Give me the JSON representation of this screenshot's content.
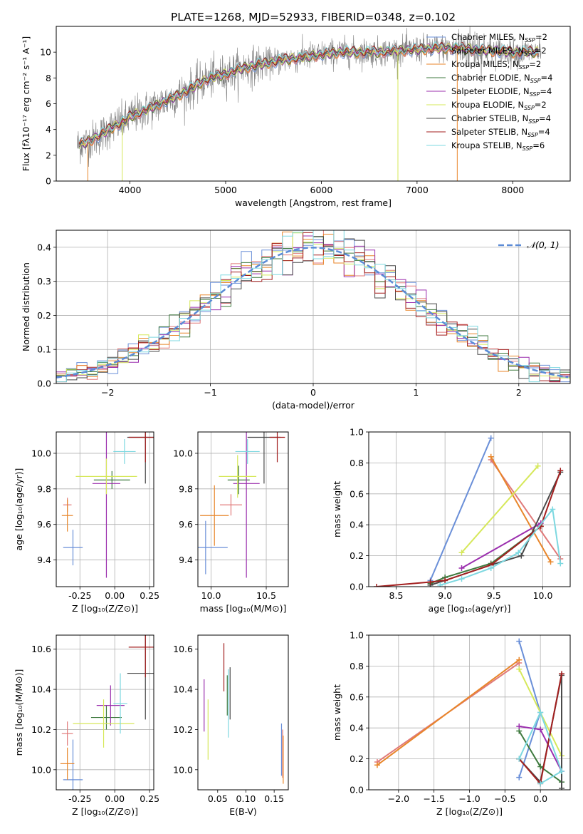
{
  "figure_title": "PLATE=1268, MJD=52933, FIBERID=0348, z=0.102",
  "colors": {
    "Chabrier MILES": "#6a8fd8",
    "Salpeter MILES": "#e07a7a",
    "Kroupa MILES": "#e8862a",
    "Chabrier ELODIE": "#3f7a3f",
    "Salpeter ELODIE": "#9b2fae",
    "Kroupa ELODIE": "#d6e85a",
    "Chabrier STELIB": "#4a4a4a",
    "Salpeter STELIB": "#a31f1f",
    "Kroupa STELIB": "#7dd8e0",
    "gaussian": "#5b8bd6",
    "data": "#808080"
  },
  "chart_data": [
    {
      "id": "spectrum",
      "type": "line",
      "title": "PLATE=1268, MJD=52933, FIBERID=0348, z=0.102",
      "xlabel": "wavelength [Angstrom, rest frame]",
      "ylabel": "Flux [fλ10⁻¹⁷ erg cm⁻² s⁻¹ A⁻¹]",
      "xlim": [
        3230,
        8600
      ],
      "ylim": [
        0,
        12
      ],
      "xticks": [
        4000,
        5000,
        6000,
        7000,
        8000
      ],
      "yticks": [
        0,
        2,
        4,
        6,
        8,
        10
      ],
      "legend_position": "right",
      "legend": [
        "Chabrier MILES, N_SSP=2",
        "Salpeter MILES, N_SSP=2",
        "Kroupa MILES, N_SSP=2",
        "Chabrier ELODIE, N_SSP=4",
        "Salpeter ELODIE, N_SSP=4",
        "Kroupa ELODIE, N_SSP=2",
        "Chabrier STELIB, N_SSP=4",
        "Salpeter STELIB, N_SSP=4",
        "Kroupa STELIB, N_SSP=6"
      ],
      "continuum_points": [
        [
          3450,
          2.8
        ],
        [
          3550,
          3.0
        ],
        [
          3700,
          3.6
        ],
        [
          3800,
          4.1
        ],
        [
          3900,
          4.5
        ],
        [
          3950,
          4.6
        ],
        [
          4000,
          5.0
        ],
        [
          4200,
          5.6
        ],
        [
          4400,
          6.3
        ],
        [
          4600,
          7.0
        ],
        [
          4800,
          7.9
        ],
        [
          5000,
          8.3
        ],
        [
          5200,
          8.8
        ],
        [
          5400,
          9.1
        ],
        [
          5600,
          9.4
        ],
        [
          5800,
          9.6
        ],
        [
          6000,
          9.8
        ],
        [
          6200,
          10.0
        ],
        [
          6400,
          10.0
        ],
        [
          6600,
          10.0
        ],
        [
          6800,
          10.1
        ],
        [
          7000,
          10.2
        ],
        [
          7200,
          10.3
        ],
        [
          7400,
          10.3
        ],
        [
          7600,
          10.2
        ],
        [
          7800,
          10.1
        ],
        [
          8000,
          10.0
        ],
        [
          8200,
          10.0
        ],
        [
          8300,
          10.0
        ]
      ]
    },
    {
      "id": "residuals",
      "type": "line",
      "xlabel": "(data-model)/error",
      "ylabel": "Normed distribution",
      "xlim": [
        -2.5,
        2.5
      ],
      "ylim": [
        0,
        0.45
      ],
      "xticks": [
        -2,
        -1,
        0,
        1,
        2
      ],
      "yticks": [
        0.0,
        0.1,
        0.2,
        0.3,
        0.4
      ],
      "grid": true,
      "legend_position": "upper right",
      "legend": [
        "𝒩(0, 1)"
      ],
      "bin_width": 0.1
    },
    {
      "id": "age_vs_Z",
      "type": "scatter",
      "xlabel": "Z [log₁₀(Z/Z⊙)]",
      "ylabel": "age  [log₁₀(age/yr)]",
      "xlim": [
        -0.42,
        0.28
      ],
      "ylim": [
        9.25,
        10.12
      ],
      "xticks": [
        -0.25,
        0.0,
        0.25
      ],
      "yticks": [
        9.4,
        9.6,
        9.8,
        10.0
      ],
      "grid": true,
      "points": [
        {
          "model": "Chabrier MILES",
          "x": -0.3,
          "xerr": 0.07,
          "y": 9.47,
          "yerr": 0.1
        },
        {
          "model": "Salpeter MILES",
          "x": -0.34,
          "xerr": 0.03,
          "y": 9.71,
          "yerr": 0.04
        },
        {
          "model": "Kroupa MILES",
          "x": -0.34,
          "xerr": 0.04,
          "y": 9.65,
          "yerr": 0.09
        },
        {
          "model": "Chabrier ELODIE",
          "x": -0.02,
          "xerr": 0.13,
          "y": 9.85,
          "yerr": 0.05
        },
        {
          "model": "Salpeter ELODIE",
          "x": -0.06,
          "xerr": 0.1,
          "y": 9.83,
          "yerr": 0.53
        },
        {
          "model": "Kroupa ELODIE",
          "x": -0.06,
          "xerr": 0.22,
          "y": 9.87,
          "yerr": 0.1
        },
        {
          "model": "Chabrier STELIB",
          "x": 0.22,
          "xerr": 0.13,
          "y": 10.09,
          "yerr": 0.26
        },
        {
          "model": "Salpeter STELIB",
          "x": 0.22,
          "xerr": 0.12,
          "y": 10.09,
          "yerr": 0.14
        },
        {
          "model": "Kroupa STELIB",
          "x": 0.07,
          "xerr": 0.08,
          "y": 10.01,
          "yerr": 0.07
        }
      ]
    },
    {
      "id": "age_vs_mass",
      "type": "scatter",
      "xlabel": "mass [log₁₀(M/M⊙)]",
      "xlim": [
        9.88,
        10.7
      ],
      "ylim": [
        9.25,
        10.12
      ],
      "xticks": [
        10.0,
        10.5
      ],
      "yticks": [
        9.4,
        9.6,
        9.8,
        10.0
      ],
      "grid": true,
      "points": [
        {
          "model": "Chabrier MILES",
          "x": 9.95,
          "xerr": 0.2,
          "y": 9.47,
          "yerr": 0.15
        },
        {
          "model": "Salpeter MILES",
          "x": 10.18,
          "xerr": 0.1,
          "y": 9.71,
          "yerr": 0.06
        },
        {
          "model": "Kroupa MILES",
          "x": 10.03,
          "xerr": 0.13,
          "y": 9.65,
          "yerr": 0.17
        },
        {
          "model": "Chabrier ELODIE",
          "x": 10.25,
          "xerr": 0.1,
          "y": 9.85,
          "yerr": 0.08
        },
        {
          "model": "Salpeter ELODIE",
          "x": 10.32,
          "xerr": 0.12,
          "y": 9.83,
          "yerr": 0.53
        },
        {
          "model": "Kroupa ELODIE",
          "x": 10.24,
          "xerr": 0.17,
          "y": 9.87,
          "yerr": 0.12
        },
        {
          "model": "Chabrier STELIB",
          "x": 10.48,
          "xerr": 0.15,
          "y": 10.09,
          "yerr": 0.26
        },
        {
          "model": "Salpeter STELIB",
          "x": 10.6,
          "xerr": 0.07,
          "y": 10.09,
          "yerr": 0.14
        },
        {
          "model": "Kroupa STELIB",
          "x": 10.33,
          "xerr": 0.11,
          "y": 10.01,
          "yerr": 0.07
        }
      ]
    },
    {
      "id": "weight_vs_age",
      "type": "line",
      "xlabel": "age  [log₁₀(age/yr)]",
      "ylabel": "mass weight",
      "xlim": [
        8.22,
        10.28
      ],
      "ylim": [
        0,
        1.0
      ],
      "xticks": [
        8.5,
        9.0,
        9.5,
        10.0
      ],
      "yticks": [
        0.0,
        0.2,
        0.4,
        0.6,
        0.8,
        1.0
      ],
      "grid": true,
      "series": [
        {
          "model": "Chabrier MILES",
          "x": [
            8.85,
            9.47
          ],
          "y": [
            0.04,
            0.96
          ]
        },
        {
          "model": "Salpeter MILES",
          "x": [
            9.47,
            10.18
          ],
          "y": [
            0.82,
            0.18
          ]
        },
        {
          "model": "Kroupa MILES",
          "x": [
            9.47,
            10.08
          ],
          "y": [
            0.84,
            0.16
          ]
        },
        {
          "model": "Chabrier ELODIE",
          "x": [
            8.85,
            9.0,
            9.47,
            9.98
          ],
          "y": [
            0.02,
            0.06,
            0.15,
            0.39
          ]
        },
        {
          "model": "Salpeter ELODIE",
          "x": [
            9.17,
            9.98
          ],
          "y": [
            0.12,
            0.41
          ]
        },
        {
          "model": "Kroupa ELODIE",
          "x": [
            9.17,
            9.95
          ],
          "y": [
            0.22,
            0.78
          ]
        },
        {
          "model": "Chabrier STELIB",
          "x": [
            8.85,
            9.0,
            9.47,
            9.78,
            10.18
          ],
          "y": [
            0.01,
            0.04,
            0.14,
            0.2,
            0.74
          ]
        },
        {
          "model": "Salpeter STELIB",
          "x": [
            8.3,
            8.85,
            9.0,
            9.47,
            9.98,
            10.18
          ],
          "y": [
            0.0,
            0.03,
            0.04,
            0.14,
            0.39,
            0.75
          ]
        },
        {
          "model": "Kroupa STELIB",
          "x": [
            8.95,
            9.17,
            9.47,
            9.75,
            10.1,
            10.18
          ],
          "y": [
            0.01,
            0.05,
            0.12,
            0.22,
            0.5,
            0.15
          ]
        }
      ]
    },
    {
      "id": "mass_vs_Z",
      "type": "scatter",
      "xlabel": "Z [log₁₀(Z/Z⊙)]",
      "ylabel": "mass [log₁₀(M/M⊙)]",
      "xlim": [
        -0.42,
        0.28
      ],
      "ylim": [
        9.9,
        10.67
      ],
      "xticks": [
        -0.25,
        0.0,
        0.25
      ],
      "yticks": [
        10.0,
        10.2,
        10.4,
        10.6
      ],
      "grid": true,
      "points": [
        {
          "model": "Chabrier MILES",
          "x": -0.3,
          "xerr": 0.07,
          "y": 9.95,
          "yerr": 0.2
        },
        {
          "model": "Salpeter MILES",
          "x": -0.34,
          "xerr": 0.04,
          "y": 10.18,
          "yerr": 0.06
        },
        {
          "model": "Kroupa MILES",
          "x": -0.34,
          "xerr": 0.05,
          "y": 10.03,
          "yerr": 0.08
        },
        {
          "model": "Chabrier ELODIE",
          "x": -0.06,
          "xerr": 0.11,
          "y": 10.26,
          "yerr": 0.06
        },
        {
          "model": "Salpeter ELODIE",
          "x": -0.03,
          "xerr": 0.1,
          "y": 10.32,
          "yerr": 0.1
        },
        {
          "model": "Kroupa ELODIE",
          "x": -0.08,
          "xerr": 0.22,
          "y": 10.23,
          "yerr": 0.12
        },
        {
          "model": "Chabrier STELIB",
          "x": 0.22,
          "xerr": 0.13,
          "y": 10.48,
          "yerr": 0.23
        },
        {
          "model": "Salpeter STELIB",
          "x": 0.22,
          "xerr": 0.12,
          "y": 10.61,
          "yerr": 0.15
        },
        {
          "model": "Kroupa STELIB",
          "x": 0.04,
          "xerr": 0.05,
          "y": 10.33,
          "yerr": 0.15
        }
      ]
    },
    {
      "id": "mass_vs_EBV",
      "type": "scatter",
      "xlabel": "E(B-V)",
      "xlim": [
        0.015,
        0.175
      ],
      "ylim": [
        9.9,
        10.67
      ],
      "xticks": [
        0.05,
        0.1,
        0.15
      ],
      "yticks": [
        10.0,
        10.2,
        10.4,
        10.6
      ],
      "grid": false,
      "points": [
        {
          "model": "Chabrier MILES",
          "x": 0.163,
          "y": 10.1,
          "yerr": 0.13
        },
        {
          "model": "Salpeter MILES",
          "x": 0.165,
          "y": 10.08,
          "yerr": 0.12
        },
        {
          "model": "Kroupa MILES",
          "x": 0.166,
          "y": 10.05,
          "yerr": 0.12
        },
        {
          "model": "Chabrier ELODIE",
          "x": 0.067,
          "y": 10.37,
          "yerr": 0.1
        },
        {
          "model": "Salpeter ELODIE",
          "x": 0.026,
          "y": 10.32,
          "yerr": 0.13
        },
        {
          "model": "Kroupa ELODIE",
          "x": 0.033,
          "y": 10.2,
          "yerr": 0.15
        },
        {
          "model": "Chabrier STELIB",
          "x": 0.072,
          "y": 10.38,
          "yerr": 0.13
        },
        {
          "model": "Salpeter STELIB",
          "x": 0.061,
          "y": 10.51,
          "yerr": 0.12
        },
        {
          "model": "Kroupa STELIB",
          "x": 0.069,
          "y": 10.33,
          "yerr": 0.17
        }
      ]
    },
    {
      "id": "weight_vs_Z",
      "type": "line",
      "xlabel": "Z [log₁₀(Z/Z⊙)]",
      "ylabel": "mass weight",
      "xlim": [
        -2.42,
        0.42
      ],
      "ylim": [
        0,
        1.0
      ],
      "xticks": [
        -2.0,
        -1.5,
        -1.0,
        -0.5,
        0.0
      ],
      "yticks": [
        0.0,
        0.2,
        0.4,
        0.6,
        0.8,
        1.0
      ],
      "grid": true,
      "series": [
        {
          "model": "Chabrier MILES",
          "x": [
            -0.3,
            0.0,
            -0.3
          ],
          "y": [
            0.96,
            0.5,
            0.08
          ]
        },
        {
          "model": "Salpeter MILES",
          "x": [
            -2.3,
            -0.3
          ],
          "y": [
            0.18,
            0.82
          ]
        },
        {
          "model": "Kroupa MILES",
          "x": [
            -2.3,
            -0.3
          ],
          "y": [
            0.16,
            0.84
          ]
        },
        {
          "model": "Chabrier ELODIE",
          "x": [
            -0.3,
            0.0,
            0.3
          ],
          "y": [
            0.38,
            0.15,
            0.05
          ]
        },
        {
          "model": "Salpeter ELODIE",
          "x": [
            -0.3,
            0.0,
            0.3
          ],
          "y": [
            0.41,
            0.39,
            0.12
          ]
        },
        {
          "model": "Kroupa ELODIE",
          "x": [
            -0.3,
            0.3
          ],
          "y": [
            0.78,
            0.22
          ]
        },
        {
          "model": "Chabrier STELIB",
          "x": [
            -0.3,
            0.0,
            0.3,
            0.3
          ],
          "y": [
            0.2,
            0.05,
            0.74,
            0.01
          ]
        },
        {
          "model": "Salpeter STELIB",
          "x": [
            -0.3,
            0.0,
            0.3
          ],
          "y": [
            0.2,
            0.04,
            0.75
          ]
        },
        {
          "model": "Kroupa STELIB",
          "x": [
            -0.3,
            0.0,
            0.3,
            0.0
          ],
          "y": [
            0.2,
            0.5,
            0.12,
            0.04
          ]
        }
      ]
    }
  ]
}
